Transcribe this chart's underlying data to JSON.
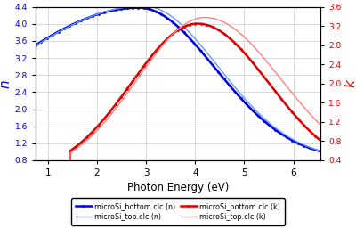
{
  "title": "",
  "xlabel": "Photon Energy (eV)",
  "ylabel_left": "n",
  "ylabel_right": "k",
  "xlim": [
    0.75,
    6.55
  ],
  "ylim_left": [
    0.8,
    4.4
  ],
  "ylim_right": [
    0.4,
    3.6
  ],
  "yticks_left": [
    0.8,
    1.2,
    1.6,
    2.0,
    2.4,
    2.8,
    3.2,
    3.6,
    4.0,
    4.4
  ],
  "yticks_right": [
    0.4,
    0.8,
    1.2,
    1.6,
    2.0,
    2.4,
    2.8,
    3.2,
    3.6
  ],
  "xticks": [
    1,
    2,
    3,
    4,
    5,
    6
  ],
  "color_blue_dark": "#0000dd",
  "color_blue_light": "#6699ff",
  "color_red_dark": "#dd0000",
  "color_red_light": "#ff8080",
  "legend_entries": [
    "microSi_bottom.clc (n)",
    "microSi_top.clc (n)",
    "microSi_bottom.clc (k)",
    "microSi_top.clc (k)"
  ],
  "background_color": "#ffffff",
  "grid_color": "#cccccc"
}
